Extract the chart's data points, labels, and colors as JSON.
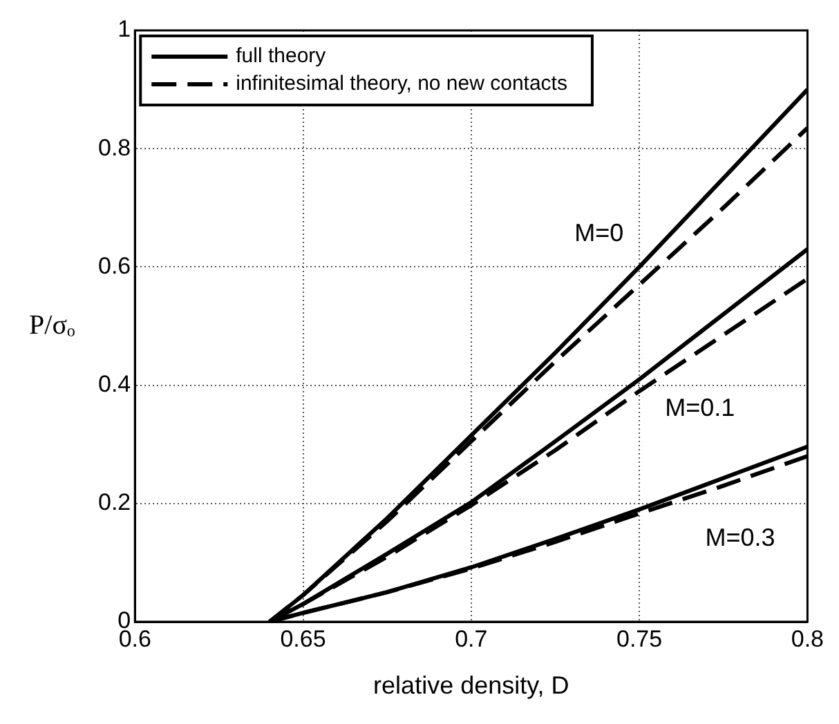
{
  "chart_data": {
    "type": "line",
    "xlabel": "relative density, D",
    "ylabel": "P/σₒ",
    "x": [
      0.64,
      0.65,
      0.675,
      0.7,
      0.725,
      0.75,
      0.775,
      0.8
    ],
    "series": [
      {
        "name": "full theory",
        "color": "#000000",
        "line_style": "solid",
        "values": [
          0,
          0.045,
          0.175,
          0.315,
          0.455,
          0.6,
          0.75,
          0.9
        ]
      },
      {
        "name": "infinitesimal theory, no new contacts",
        "color": "#000000",
        "line_style": "dashed",
        "values": [
          0,
          0.045,
          0.17,
          0.305,
          0.44,
          0.57,
          0.7,
          0.835
        ]
      },
      {
        "color": "#000000",
        "line_style": "solid",
        "values": [
          0,
          0.03,
          0.115,
          0.202,
          0.305,
          0.41,
          0.52,
          0.63
        ]
      },
      {
        "color": "#000000",
        "line_style": "dashed",
        "values": [
          0,
          0.03,
          0.11,
          0.197,
          0.29,
          0.39,
          0.485,
          0.58
        ]
      },
      {
        "color": "#000000",
        "line_style": "solid",
        "values": [
          0,
          0.015,
          0.05,
          0.092,
          0.14,
          0.19,
          0.243,
          0.296
        ]
      },
      {
        "color": "#000000",
        "line_style": "dashed",
        "values": [
          0,
          0.015,
          0.05,
          0.09,
          0.135,
          0.183,
          0.23,
          0.28
        ]
      }
    ],
    "xlim": [
      0.6,
      0.8
    ],
    "xticks": [
      0.6,
      0.65,
      0.7,
      0.75,
      0.8
    ],
    "ylim": [
      0,
      1
    ],
    "yticks": [
      0,
      0.2,
      0.4,
      0.6,
      0.8,
      1
    ],
    "grid": true,
    "legend": "top left",
    "marker": "none",
    "annotations": [
      "M=0",
      "M=0.1",
      "M=0.3"
    ]
  }
}
